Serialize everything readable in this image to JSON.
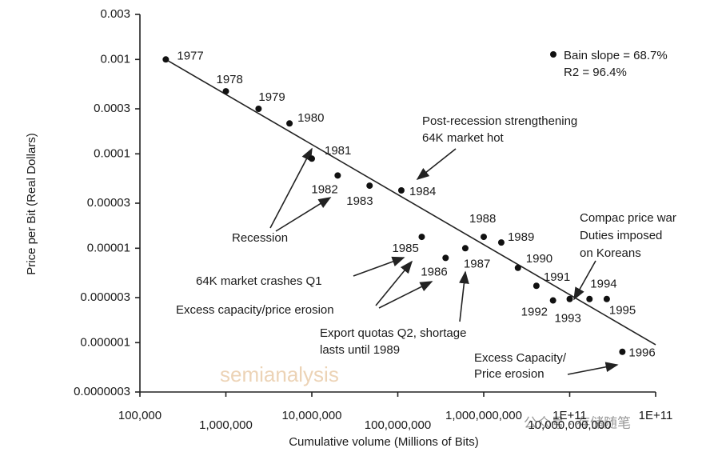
{
  "chart_data": {
    "type": "scatter",
    "x_label": "Cumulative volume (Millions of Bits)",
    "y_label": "Price per Bit (Real Dollars)",
    "log_x": true,
    "log_y": true,
    "color": "#111111",
    "xlim": [
      100000,
      100000000000
    ],
    "ylim": [
      3e-07,
      0.003
    ],
    "xticks": [
      {
        "value": 100000,
        "label": "100,000"
      },
      {
        "value": 1000000,
        "label": "1,000,000"
      },
      {
        "value": 10000000,
        "label": "10,000,000"
      },
      {
        "value": 100000000,
        "label": "100,000,000"
      },
      {
        "value": 1000000000,
        "label": "1,000,000,000"
      },
      {
        "value": 10000000000,
        "label": "10,000,000,000"
      },
      {
        "value": 100000000000,
        "label": "1E+11"
      }
    ],
    "x_extra_tick_label": {
      "value": 10000000000,
      "label": "1E+11"
    },
    "yticks": [
      0.003,
      0.001,
      0.0003,
      0.0001,
      3e-05,
      1e-05,
      3e-06,
      1e-06,
      {
        "value": 3e-07,
        "label": "0.0000003"
      }
    ],
    "categories": [
      "1977",
      "1978",
      "1979",
      "1980",
      "1981",
      "1982",
      "1983",
      "1984",
      "1985",
      "1986",
      "1987",
      "1988",
      "1989",
      "1990",
      "1991",
      "1992",
      "1993",
      "1994",
      "1995",
      "1996"
    ],
    "x": [
      200000,
      1000000,
      2400000,
      5500000,
      10000000,
      20000000,
      47000000,
      110000000,
      190000000,
      360000000,
      610000000,
      1000000000,
      1600000000,
      2500000000,
      4100000000,
      6400000000,
      10000000000,
      17000000000,
      27000000000,
      41000000000
    ],
    "values": [
      0.001,
      0.00046,
      0.0003,
      0.00021,
      8.9e-05,
      5.9e-05,
      4.6e-05,
      4.1e-05,
      1.32e-05,
      7.9e-06,
      1e-05,
      1.32e-05,
      1.15e-05,
      6.2e-06,
      4e-06,
      2.8e-06,
      2.9e-06,
      2.9e-06,
      2.9e-06,
      8e-07
    ],
    "trend_line": {
      "x": [
        200000,
        100000000000
      ],
      "values": [
        0.001,
        9.5e-07
      ]
    },
    "fit_stats": [
      "Bain slope = 68.7%",
      "R2 = 96.4%"
    ],
    "annotations": [
      {
        "lines": [
          "Post-recession strengthening",
          "64K market hot"
        ]
      },
      {
        "lines": [
          "Recession"
        ]
      },
      {
        "lines": [
          "64K market crashes Q1"
        ]
      },
      {
        "lines": [
          "Excess capacity/price erosion"
        ]
      },
      {
        "lines": [
          "Export quotas Q2, shortage",
          "lasts until 1989"
        ]
      },
      {
        "lines": [
          "Compac price war",
          "Duties imposed",
          "on Koreans"
        ]
      },
      {
        "lines": [
          "Excess Capacity/",
          "Price erosion"
        ]
      }
    ],
    "watermarks": [
      "semianalysis",
      "公众号 · 存储随笔"
    ]
  }
}
